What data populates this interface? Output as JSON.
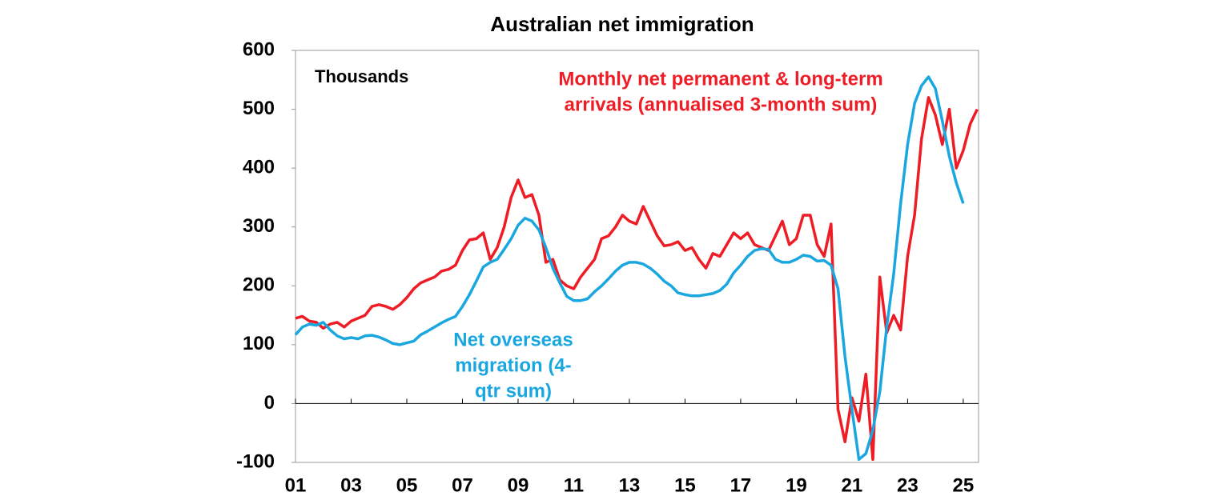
{
  "chart_data": {
    "type": "line",
    "title": "Australian net immigration",
    "annotations": [
      {
        "text": "Thousands"
      }
    ],
    "xlim": [
      1,
      25.55
    ],
    "xticks": [
      {
        "value": 1,
        "label": "01"
      },
      {
        "value": 3,
        "label": "03"
      },
      {
        "value": 5,
        "label": "05"
      },
      {
        "value": 7,
        "label": "07"
      },
      {
        "value": 9,
        "label": "09"
      },
      {
        "value": 11,
        "label": "11"
      },
      {
        "value": 13,
        "label": "13"
      },
      {
        "value": 15,
        "label": "15"
      },
      {
        "value": 17,
        "label": "17"
      },
      {
        "value": 19,
        "label": "19"
      },
      {
        "value": 21,
        "label": "21"
      },
      {
        "value": 23,
        "label": "23"
      },
      {
        "value": 25,
        "label": "25"
      }
    ],
    "ylim": [
      -100,
      600
    ],
    "yticks": [
      -100,
      0,
      100,
      200,
      300,
      400,
      500,
      600
    ],
    "series": [
      {
        "label": [
          "Monthly net permanent & long-term",
          "arrivals (annualised 3-month sum)"
        ],
        "color": "#ee1c25",
        "x": [
          1,
          1.25,
          1.5,
          1.75,
          2,
          2.25,
          2.5,
          2.75,
          3,
          3.25,
          3.5,
          3.75,
          4,
          4.25,
          4.5,
          4.75,
          5,
          5.25,
          5.5,
          5.75,
          6,
          6.25,
          6.5,
          6.75,
          7,
          7.25,
          7.5,
          7.75,
          8,
          8.25,
          8.5,
          8.75,
          9,
          9.25,
          9.5,
          9.75,
          10,
          10.25,
          10.5,
          10.75,
          11,
          11.25,
          11.5,
          11.75,
          12,
          12.25,
          12.5,
          12.75,
          13,
          13.25,
          13.5,
          13.75,
          14,
          14.25,
          14.5,
          14.75,
          15,
          15.25,
          15.5,
          15.75,
          16,
          16.25,
          16.5,
          16.75,
          17,
          17.25,
          17.5,
          17.75,
          18,
          18.25,
          18.5,
          18.75,
          19,
          19.25,
          19.5,
          19.75,
          20,
          20.25,
          20.5,
          20.75,
          21,
          21.25,
          21.5,
          21.75,
          22,
          22.25,
          22.5,
          22.75,
          23,
          23.25,
          23.5,
          23.75,
          24,
          24.25,
          24.5,
          24.75,
          25,
          25.25,
          25.5
        ],
        "values": [
          145,
          148,
          140,
          138,
          128,
          135,
          138,
          130,
          140,
          145,
          150,
          165,
          168,
          165,
          160,
          168,
          180,
          195,
          205,
          210,
          215,
          225,
          228,
          235,
          260,
          278,
          280,
          290,
          245,
          265,
          300,
          350,
          380,
          350,
          355,
          320,
          240,
          245,
          210,
          200,
          195,
          215,
          230,
          245,
          280,
          285,
          300,
          320,
          310,
          305,
          335,
          310,
          285,
          268,
          270,
          275,
          260,
          265,
          245,
          230,
          255,
          250,
          270,
          290,
          280,
          290,
          270,
          265,
          260,
          285,
          310,
          270,
          280,
          320,
          320,
          270,
          250,
          305,
          -10,
          -65,
          10,
          -30,
          50,
          -95,
          215,
          120,
          150,
          125,
          250,
          320,
          450,
          520,
          490,
          440,
          500,
          400,
          430,
          475,
          500
        ]
      },
      {
        "label": [
          "Net overseas",
          "migration (4-",
          "qtr sum)"
        ],
        "color": "#1aa7e0",
        "x": [
          1,
          1.25,
          1.5,
          1.75,
          2,
          2.25,
          2.5,
          2.75,
          3,
          3.25,
          3.5,
          3.75,
          4,
          4.25,
          4.5,
          4.75,
          5,
          5.25,
          5.5,
          5.75,
          6,
          6.25,
          6.5,
          6.75,
          7,
          7.25,
          7.5,
          7.75,
          8,
          8.25,
          8.5,
          8.75,
          9,
          9.25,
          9.5,
          9.75,
          10,
          10.25,
          10.5,
          10.75,
          11,
          11.25,
          11.5,
          11.75,
          12,
          12.25,
          12.5,
          12.75,
          13,
          13.25,
          13.5,
          13.75,
          14,
          14.25,
          14.5,
          14.75,
          15,
          15.25,
          15.5,
          15.75,
          16,
          16.25,
          16.5,
          16.75,
          17,
          17.25,
          17.5,
          17.75,
          18,
          18.25,
          18.5,
          18.75,
          19,
          19.25,
          19.5,
          19.75,
          20,
          20.25,
          20.5,
          20.75,
          21,
          21.25,
          21.5,
          21.75,
          22,
          22.25,
          22.5,
          22.75,
          23,
          23.25,
          23.5,
          23.75,
          24,
          24.25,
          24.5,
          24.75,
          25
        ],
        "values": [
          117,
          130,
          135,
          133,
          138,
          125,
          115,
          110,
          112,
          110,
          115,
          116,
          113,
          108,
          102,
          100,
          103,
          106,
          117,
          123,
          130,
          137,
          143,
          148,
          165,
          185,
          208,
          232,
          240,
          245,
          262,
          280,
          303,
          315,
          310,
          295,
          265,
          230,
          205,
          182,
          175,
          175,
          178,
          190,
          200,
          212,
          225,
          235,
          240,
          240,
          237,
          230,
          220,
          208,
          200,
          188,
          185,
          183,
          183,
          185,
          187,
          192,
          203,
          222,
          235,
          250,
          260,
          263,
          262,
          245,
          240,
          240,
          245,
          252,
          250,
          242,
          243,
          235,
          195,
          80,
          -10,
          -95,
          -85,
          -45,
          20,
          130,
          220,
          340,
          440,
          510,
          540,
          555,
          535,
          480,
          420,
          375,
          340
        ]
      }
    ]
  }
}
